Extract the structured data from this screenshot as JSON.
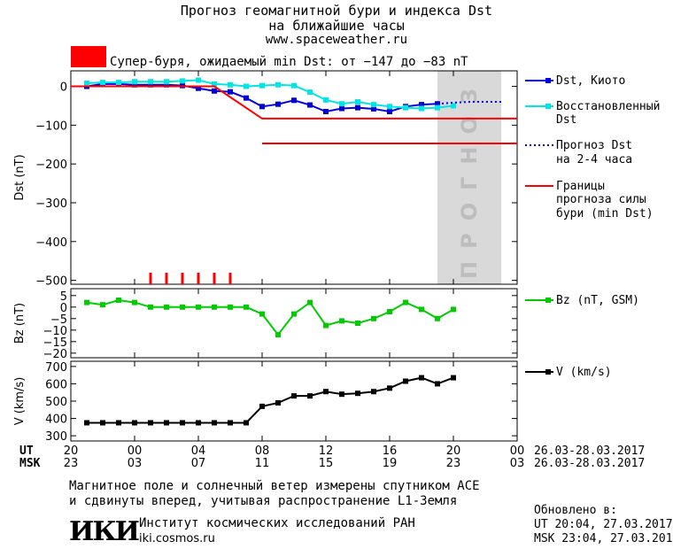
{
  "header": {
    "title_line1": "Прогноз геомагнитной бури и индекса Dst",
    "title_line2": "на ближайшие часы",
    "url": "www.spaceweather.ru",
    "storm_text": "Супер-буря, ожидаемый min Dst: от −147 до −83 nT",
    "storm_color": "#ff0000"
  },
  "legend": {
    "dst_kyoto": "Dst, Киото",
    "dst_restored_l1": "Восстановленный",
    "dst_restored_l2": "Dst",
    "forecast_l1": "Прогноз Dst",
    "forecast_l2": "на 2-4 часа",
    "bounds_l1": "Границы",
    "bounds_l2": "прогноза силы",
    "bounds_l3": "бури (min Dst)",
    "bz": "Bz (nT, GSM)",
    "v": "V (km/s)"
  },
  "forecast_label": "ПРОГНОЗ",
  "time_axis": {
    "ut_label": "UT",
    "msk_label": "MSK",
    "ut_ticks": [
      "20",
      "00",
      "04",
      "08",
      "12",
      "16",
      "20",
      "00"
    ],
    "msk_ticks": [
      "23",
      "03",
      "07",
      "11",
      "15",
      "19",
      "23",
      "03"
    ],
    "ut_range": "26.03-28.03.2017",
    "msk_range": "26.03-28.03.2017"
  },
  "footer": {
    "note_line1": "Магнитное поле и солнечный ветер измерены спутником ACE",
    "note_line2": "и сдвинуты вперед, учитывая распространение L1-Земля",
    "logo": "ИКИ",
    "institute": "Институт космических исследований РАН",
    "site": "iki.cosmos.ru",
    "updated_label": "Обновлено в:",
    "updated_ut": "UT  20:04, 27.03.2017",
    "updated_msk": "MSK 23:04, 27.03.2017"
  },
  "chart_data": [
    {
      "type": "line",
      "ylabel": "Dst (nT)",
      "ylim": [
        -510,
        40
      ],
      "yticks": [
        0,
        -100,
        -200,
        -300,
        -400,
        -500
      ],
      "xlim": [
        0,
        28
      ],
      "forecast_region": [
        23,
        27
      ],
      "series": [
        {
          "name": "Dst, Киото",
          "color": "#0000dd",
          "marker": "square",
          "x": [
            1,
            2,
            3,
            4,
            5,
            6,
            7,
            8,
            9,
            10,
            11,
            12,
            13,
            14,
            15,
            16,
            17,
            18,
            19,
            20,
            21,
            22,
            23
          ],
          "y": [
            0,
            6,
            6,
            4,
            4,
            4,
            2,
            -5,
            -12,
            -14,
            -30,
            -52,
            -46,
            -36,
            -48,
            -65,
            -57,
            -55,
            -58,
            -65,
            -52,
            -47,
            -45
          ]
        },
        {
          "name": "Восстановленный Dst",
          "color": "#00e5e5",
          "marker": "square",
          "x": [
            1,
            2,
            3,
            4,
            5,
            6,
            7,
            8,
            9,
            10,
            11,
            12,
            13,
            14,
            15,
            16,
            17,
            18,
            19,
            20,
            21,
            22,
            23,
            24
          ],
          "y": [
            8,
            10,
            10,
            12,
            12,
            12,
            14,
            16,
            6,
            4,
            0,
            2,
            4,
            2,
            -15,
            -35,
            -45,
            -40,
            -47,
            -52,
            -55,
            -57,
            -55,
            -50
          ]
        },
        {
          "name": "Прогноз Dst на 2-4 часа",
          "color": "#0000dd",
          "style": "dotted",
          "x": [
            23,
            24,
            25,
            26,
            27
          ],
          "y": [
            -45,
            -42,
            -40,
            -40,
            -40
          ]
        },
        {
          "name": "Границы прогноза силы бури (min Dst)",
          "color": "#ff0000",
          "segments": [
            {
              "x": [
                0,
                9,
                12,
                28
              ],
              "y": [
                0,
                0,
                -83,
                -83
              ]
            },
            {
              "x": [
                12,
                28
              ],
              "y": [
                -147,
                -147
              ]
            }
          ]
        }
      ],
      "kp_bars_x": [
        5,
        6,
        7,
        8,
        9,
        10
      ]
    },
    {
      "type": "line",
      "ylabel": "Bz (nT)",
      "ylim": [
        -22,
        8
      ],
      "yticks": [
        5,
        0,
        -5,
        -10,
        -15,
        -20
      ],
      "xlim": [
        0,
        28
      ],
      "series": [
        {
          "name": "Bz (nT, GSM)",
          "color": "#00cc00",
          "marker": "square",
          "x": [
            1,
            2,
            3,
            4,
            5,
            6,
            7,
            8,
            9,
            10,
            11,
            12,
            13,
            14,
            15,
            16,
            17,
            18,
            19,
            20,
            21,
            22,
            23,
            24
          ],
          "y": [
            2,
            1,
            3,
            2,
            0,
            0,
            0,
            0,
            0,
            0,
            0,
            -3,
            -12,
            -3,
            2,
            -8,
            -6,
            -7,
            -5,
            -2,
            2,
            -1,
            -5,
            -1
          ]
        }
      ]
    },
    {
      "type": "line",
      "ylabel": "V (km/s)",
      "ylim": [
        270,
        730
      ],
      "yticks": [
        700,
        600,
        500,
        400,
        300
      ],
      "xlim": [
        0,
        28
      ],
      "series": [
        {
          "name": "V (km/s)",
          "color": "#000000",
          "marker": "square",
          "x": [
            1,
            2,
            3,
            4,
            5,
            6,
            7,
            8,
            9,
            10,
            11,
            12,
            13,
            14,
            15,
            16,
            17,
            18,
            19,
            20,
            21,
            22,
            23,
            24
          ],
          "y": [
            375,
            375,
            375,
            375,
            375,
            375,
            375,
            375,
            375,
            375,
            375,
            470,
            490,
            530,
            530,
            555,
            540,
            545,
            555,
            575,
            615,
            635,
            600,
            635
          ]
        }
      ]
    }
  ]
}
